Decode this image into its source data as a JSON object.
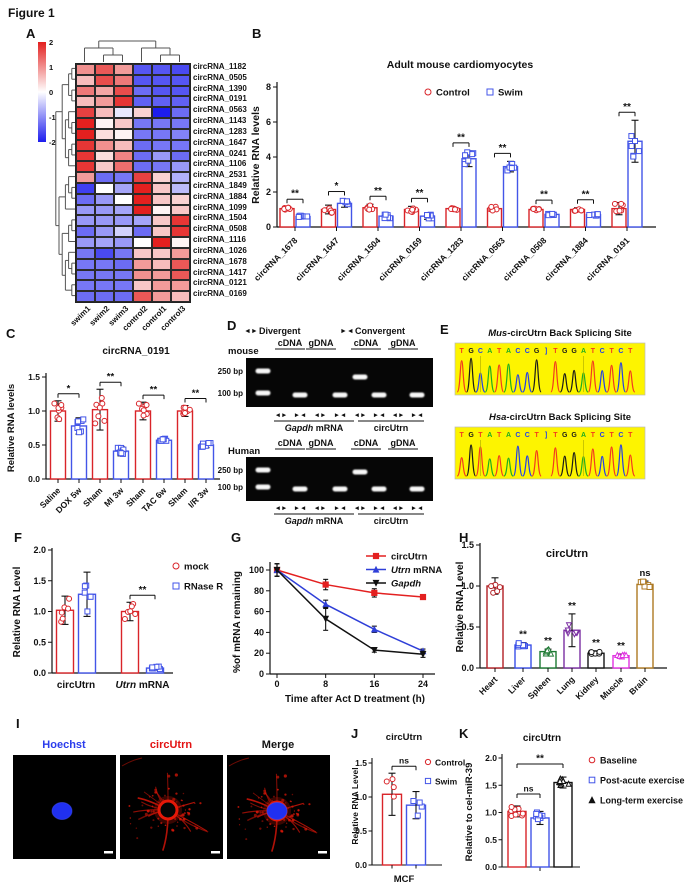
{
  "figure_label": "Figure 1",
  "panels": {
    "A": {
      "label": "A"
    },
    "B": {
      "label": "B"
    },
    "C": {
      "label": "C"
    },
    "D": {
      "label": "D"
    },
    "E": {
      "label": "E"
    },
    "F": {
      "label": "F"
    },
    "G": {
      "label": "G"
    },
    "H": {
      "label": "H"
    },
    "I": {
      "label": "I"
    },
    "J": {
      "label": "J"
    },
    "K": {
      "label": "K"
    }
  },
  "colors": {
    "red": "#d92429",
    "blue": "#4355e8",
    "black": "#111111"
  },
  "chart_data": [
    {
      "id": "A",
      "type": "heatmap",
      "columns": [
        "swim1",
        "swim2",
        "swim3",
        "control2",
        "control1",
        "control3"
      ],
      "rows": [
        "circRNA_1182",
        "circRNA_0505",
        "circRNA_1390",
        "circRNA_0191",
        "circRNA_0563",
        "circRNA_1143",
        "circRNA_1283",
        "circRNA_1647",
        "circRNA_0241",
        "circRNA_1106",
        "circRNA_2531",
        "circRNA_1849",
        "circRNA_1884",
        "circRNA_1099",
        "circRNA_1504",
        "circRNA_0508",
        "circRNA_1116",
        "circRNA_1026",
        "circRNA_1678",
        "circRNA_1417",
        "circRNA_0121",
        "circRNA_0169"
      ],
      "colorbar_ticks": [
        "2",
        "1",
        "0",
        "-1",
        "-2"
      ],
      "values": [
        [
          1.0,
          1.5,
          0.9,
          -1.5,
          -1.5,
          -1.6
        ],
        [
          0.6,
          1.6,
          1.2,
          -1.5,
          -1.5,
          -1.5
        ],
        [
          1.2,
          0.8,
          1.6,
          -1.3,
          -1.5,
          -1.5
        ],
        [
          0.6,
          0.9,
          1.8,
          -1.4,
          -1.4,
          -1.4
        ],
        [
          1.7,
          0.6,
          -0.2,
          0.4,
          -2.0,
          -1.3
        ],
        [
          2.0,
          0.1,
          0.5,
          -1.2,
          -1.2,
          -1.2
        ],
        [
          2.0,
          0.3,
          0.1,
          -1.2,
          -1.2,
          -1.1
        ],
        [
          1.8,
          1.0,
          0.6,
          -1.3,
          -1.2,
          -1.2
        ],
        [
          1.8,
          0.3,
          1.1,
          -1.3,
          -0.9,
          -1.3
        ],
        [
          1.8,
          0.5,
          1.3,
          -1.3,
          -1.2,
          -0.9
        ],
        [
          0.9,
          -1.3,
          -1.2,
          1.7,
          0.4,
          -0.7
        ],
        [
          -1.7,
          0.0,
          -0.8,
          2.0,
          0.5,
          -0.6
        ],
        [
          -1.3,
          -0.9,
          0.0,
          2.0,
          0.5,
          0.4
        ],
        [
          -0.9,
          -0.9,
          -0.8,
          2.0,
          0.1,
          0.5
        ],
        [
          -0.9,
          -0.9,
          -0.9,
          -0.8,
          0.5,
          1.8
        ],
        [
          -1.3,
          -0.9,
          -0.4,
          -1.3,
          0.5,
          1.8
        ],
        [
          -0.9,
          -0.8,
          -0.9,
          0.0,
          2.0,
          0.1
        ],
        [
          -1.2,
          -1.6,
          -1.2,
          0.5,
          0.5,
          0.9
        ],
        [
          -1.2,
          -1.2,
          -1.3,
          0.9,
          0.6,
          1.5
        ],
        [
          -1.2,
          -1.2,
          -1.2,
          1.0,
          0.9,
          1.5
        ],
        [
          -1.2,
          -1.2,
          -1.2,
          0.5,
          0.9,
          0.9
        ],
        [
          -1.3,
          -1.3,
          -1.3,
          1.5,
          0.9,
          0.6
        ]
      ]
    },
    {
      "id": "B",
      "type": "bar",
      "title": "Adult mouse cardiomyocytes",
      "ylabel": "Relative RNA levels",
      "ylim": [
        0,
        8
      ],
      "yticks": [
        0,
        2,
        4,
        6,
        8
      ],
      "categories": [
        "circRNA_1678",
        "circRNA_1647",
        "circRNA_1504",
        "circRNA_0169",
        "circRNA_1283",
        "circRNA_0563",
        "circRNA_0508",
        "circRNA_1884",
        "circRNA_0191"
      ],
      "series": [
        {
          "name": "Control",
          "marker": "circle",
          "color": "#d92429",
          "values": [
            1.05,
            1.0,
            1.1,
            1.0,
            1.05,
            1.05,
            1.0,
            1.0,
            1.05
          ],
          "errors": [
            0.08,
            0.25,
            0.2,
            0.18,
            0.1,
            0.15,
            0.08,
            0.1,
            0.35
          ]
        },
        {
          "name": "Swim",
          "marker": "square",
          "color": "#4355e8",
          "values": [
            0.6,
            1.35,
            0.62,
            0.62,
            3.9,
            3.45,
            0.72,
            0.7,
            4.9
          ],
          "errors": [
            0.08,
            0.22,
            0.15,
            0.18,
            0.45,
            0.3,
            0.06,
            0.08,
            1.2
          ]
        }
      ],
      "sig": [
        "**",
        "*",
        "**",
        "**",
        "**",
        "**",
        "**",
        "**",
        "**"
      ]
    },
    {
      "id": "C",
      "type": "bar",
      "title": "circRNA_0191",
      "ylabel": "Relative RNA levels",
      "ylim": [
        0,
        1.5
      ],
      "yticks": [
        0,
        0.5,
        1.0,
        1.5
      ],
      "categories": [
        "Saline",
        "DOX 5w",
        "Sham",
        "MI 3w",
        "Sham",
        "TAC 6w",
        "Sham",
        "I/R 3w"
      ],
      "values": [
        1.0,
        0.78,
        1.02,
        0.41,
        1.0,
        0.57,
        1.0,
        0.5
      ],
      "errors": [
        0.15,
        0.12,
        0.3,
        0.07,
        0.13,
        0.03,
        0.08,
        0.04
      ],
      "bar_colors": [
        "red",
        "blue",
        "red",
        "blue",
        "red",
        "blue",
        "red",
        "blue"
      ],
      "sig": [
        {
          "between": [
            0,
            1
          ],
          "label": "*"
        },
        {
          "between": [
            2,
            3
          ],
          "label": "**"
        },
        {
          "between": [
            4,
            5
          ],
          "label": "**"
        },
        {
          "between": [
            6,
            7
          ],
          "label": "**"
        }
      ]
    },
    {
      "id": "D",
      "type": "gel",
      "primer_modes": [
        {
          "arrows": "◄►",
          "label": "Divergent"
        },
        {
          "arrows": "►◄",
          "label": "Convergent"
        }
      ],
      "lane_headers": [
        "cDNA",
        "gDNA",
        "cDNA",
        "gDNA"
      ],
      "size_labels": [
        "250 bp",
        "100 bp"
      ],
      "lane_arrows": [
        "◄►",
        "►◄",
        "◄►",
        "►◄",
        "◄►",
        "►◄",
        "◄►",
        "►◄"
      ],
      "group_labels": [
        {
          "italic": "Gapdh",
          "rest": " mRNA"
        },
        {
          "italic": "",
          "rest": "circUtrn"
        }
      ],
      "gels": [
        {
          "label": "mouse",
          "lanes": [
            0,
            1,
            0,
            1,
            2,
            1,
            0,
            1
          ]
        },
        {
          "label": "Human",
          "lanes": [
            0,
            1,
            0,
            1,
            2,
            1,
            0,
            1
          ]
        }
      ]
    },
    {
      "id": "E",
      "type": "sequence-trace",
      "traces": [
        {
          "title_italic": "Mus",
          "title_rest": "-circUtrn Back Splicing Site",
          "sequence": [
            "T",
            "G",
            "C",
            "A",
            "T",
            "A",
            "C",
            "C",
            "G",
            "]",
            "T",
            "G",
            "G",
            "A",
            "T",
            "C",
            "T",
            "C",
            "T"
          ]
        },
        {
          "title_italic": "Hsa",
          "title_rest": "-circUtrn Back Splicing Site",
          "sequence": [
            "T",
            "G",
            "T",
            "A",
            "T",
            "A",
            "C",
            "C",
            "T",
            "]",
            "T",
            "G",
            "G",
            "A",
            "T",
            "C",
            "T",
            "C",
            "T"
          ]
        }
      ]
    },
    {
      "id": "F",
      "type": "bar",
      "ylabel": "Relative RNA Level",
      "ylim": [
        0,
        2
      ],
      "yticks": [
        0,
        0.5,
        1.0,
        1.5,
        2.0
      ],
      "categories": [
        {
          "italic": "",
          "rest": "circUtrn"
        },
        {
          "italic": "Utrn",
          "rest": " mRNA"
        }
      ],
      "series": [
        {
          "name": "mock",
          "marker": "circle",
          "color": "#d92429",
          "values": [
            1.02,
            1.0
          ],
          "errors": [
            0.23,
            0.15
          ]
        },
        {
          "name": "RNase R",
          "marker": "square",
          "color": "#4355e8",
          "values": [
            1.28,
            0.08
          ],
          "errors": [
            0.36,
            0.03
          ]
        }
      ],
      "sig": [
        {
          "group": 1,
          "label": "**"
        }
      ]
    },
    {
      "id": "G",
      "type": "line",
      "xlabel": "Time after Act D treatment (h)",
      "ylabel": "%of mRNA remaining",
      "x": [
        0,
        8,
        16,
        24
      ],
      "xticks": [
        0,
        8,
        16,
        24
      ],
      "yticks": [
        0,
        20,
        40,
        60,
        80,
        100
      ],
      "series": [
        {
          "name": "circUtrn",
          "italic": "",
          "color": "#e32020",
          "marker": "square",
          "values": [
            100,
            86,
            78,
            74
          ],
          "errors": [
            6,
            5,
            4,
            2
          ]
        },
        {
          "name": "Utrn mRNA",
          "italic": "Utrn",
          "color": "#2f3fd8",
          "marker": "triangle",
          "values": [
            100,
            67,
            43,
            22
          ],
          "errors": [
            6,
            4,
            3,
            2
          ]
        },
        {
          "name": "Gapdh",
          "italic": "Gapdh",
          "color": "#111111",
          "marker": "triangle-down",
          "values": [
            100,
            53,
            23,
            19
          ],
          "errors": [
            6,
            11,
            2,
            3
          ]
        }
      ]
    },
    {
      "id": "H",
      "type": "bar",
      "title": "circUtrn",
      "ylabel": "Relative RNA Level",
      "ylim": [
        0,
        1.5
      ],
      "yticks": [
        0,
        0.5,
        1.0,
        1.5
      ],
      "categories": [
        "Heart",
        "Liver",
        "Spleen",
        "Lung",
        "Kidney",
        "Muscle",
        "Brain"
      ],
      "values": [
        1.0,
        0.28,
        0.2,
        0.46,
        0.18,
        0.15,
        1.02
      ],
      "errors": [
        0.1,
        0.03,
        0.03,
        0.2,
        0.03,
        0.02,
        0.04
      ],
      "bar_colors": [
        "#b22025",
        "#3a4fe8",
        "#1d7a33",
        "#7b2fa3",
        "#151515",
        "#e032e0",
        "#ad7922"
      ],
      "markers": [
        "circle",
        "square",
        "triangle",
        "triangle-down",
        "circle",
        "triangle",
        "square"
      ],
      "sig": [
        "",
        "**",
        "**",
        "**",
        "**",
        "**",
        "ns"
      ]
    },
    {
      "id": "I",
      "type": "microscopy",
      "titles": [
        "Hoechst",
        "circUtrn",
        "Merge"
      ],
      "title_colors": [
        "#2a3cec",
        "#e31212",
        "#111111"
      ]
    },
    {
      "id": "J",
      "type": "bar",
      "title": "circUtrn",
      "xlabel": "MCF",
      "ylabel": "Relative RNA Level",
      "ylim": [
        0,
        1.5
      ],
      "yticks": [
        0,
        0.5,
        1.0,
        1.5
      ],
      "categories": [
        "Control",
        "Swim"
      ],
      "values": [
        1.04,
        0.88
      ],
      "errors": [
        0.31,
        0.2
      ],
      "bar_colors": [
        "#d92429",
        "#4355e8"
      ],
      "markers": [
        "circle",
        "square"
      ],
      "sig": [
        {
          "between": [
            0,
            1
          ],
          "label": "ns"
        }
      ],
      "legend": [
        {
          "name": "Control",
          "marker": "circle",
          "color": "#d92429"
        },
        {
          "name": "Swim",
          "marker": "square",
          "color": "#4355e8"
        }
      ]
    },
    {
      "id": "K",
      "type": "bar",
      "title": "circUtrn",
      "ylabel": "Relative to cel-miR-39",
      "ylim": [
        0,
        2
      ],
      "yticks": [
        0,
        0.5,
        1.0,
        1.5,
        2.0
      ],
      "categories": [
        "Baseline",
        "Post-acute exercise",
        "Long-term exercise"
      ],
      "values": [
        1.02,
        0.9,
        1.55
      ],
      "errors": [
        0.1,
        0.12,
        0.1
      ],
      "bar_colors": [
        "#d92429",
        "#4355e8",
        "#111111"
      ],
      "markers": [
        "circle",
        "square",
        "triangle"
      ],
      "sig": [
        {
          "between": [
            0,
            1
          ],
          "label": "ns"
        },
        {
          "between": [
            0,
            2
          ],
          "label": "**"
        }
      ],
      "legend": [
        {
          "name": "Baseline",
          "marker": "circle",
          "color": "#d92429"
        },
        {
          "name": "Post-acute exercise",
          "marker": "square",
          "color": "#4355e8"
        },
        {
          "name": "Long-term exercise",
          "marker": "triangle",
          "color": "#111111"
        }
      ]
    }
  ]
}
